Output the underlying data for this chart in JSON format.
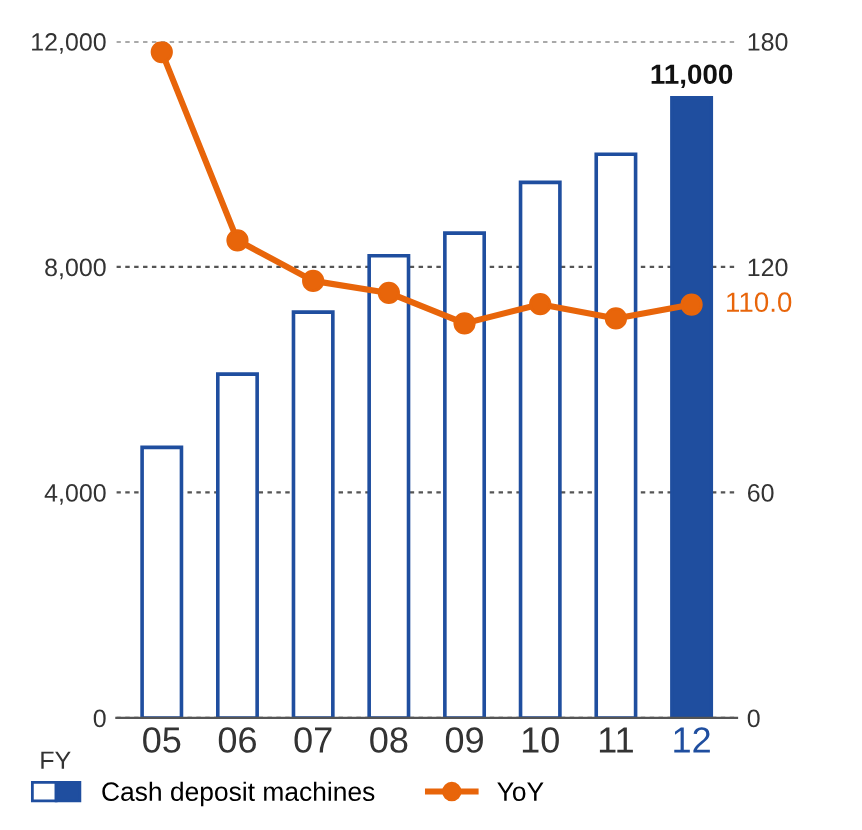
{
  "chart_data": {
    "type": "bar",
    "xlabel": "FY",
    "categories": [
      "05",
      "06",
      "07",
      "08",
      "09",
      "10",
      "11",
      "12"
    ],
    "series": [
      {
        "name": "Cash deposit machines",
        "color": "#1f4e9f",
        "colors": [
          "#ffffff",
          "#ffffff",
          "#ffffff",
          "#ffffff",
          "#ffffff",
          "#ffffff",
          "#ffffff",
          "#1f4e9f"
        ],
        "values": [
          4800,
          6100,
          7200,
          8200,
          8600,
          9500,
          10000,
          11000
        ],
        "value_labels": [
          null,
          null,
          null,
          null,
          null,
          null,
          null,
          "11,000"
        ]
      },
      {
        "name": "YoY",
        "type": "line",
        "axis": "y2",
        "color": "#e8650a",
        "values": [
          177.2,
          127.1,
          116.3,
          113.1,
          105.0,
          110.1,
          106.3,
          110.0
        ],
        "value_labels": [
          null,
          null,
          null,
          null,
          null,
          null,
          null,
          "110.0"
        ]
      }
    ],
    "ylim": [
      0,
      12000
    ],
    "yticks": [
      0,
      {
        "value": 4000,
        "label": "4,000"
      },
      {
        "value": 8000,
        "label": "8,000"
      },
      {
        "value": 12000,
        "label": "12,000"
      }
    ],
    "y2lim": [
      0,
      180
    ],
    "y2ticks": [
      0,
      60,
      120,
      180
    ],
    "grid": "y",
    "legend": "bottom",
    "marker": "circle",
    "line_style": "solid"
  }
}
